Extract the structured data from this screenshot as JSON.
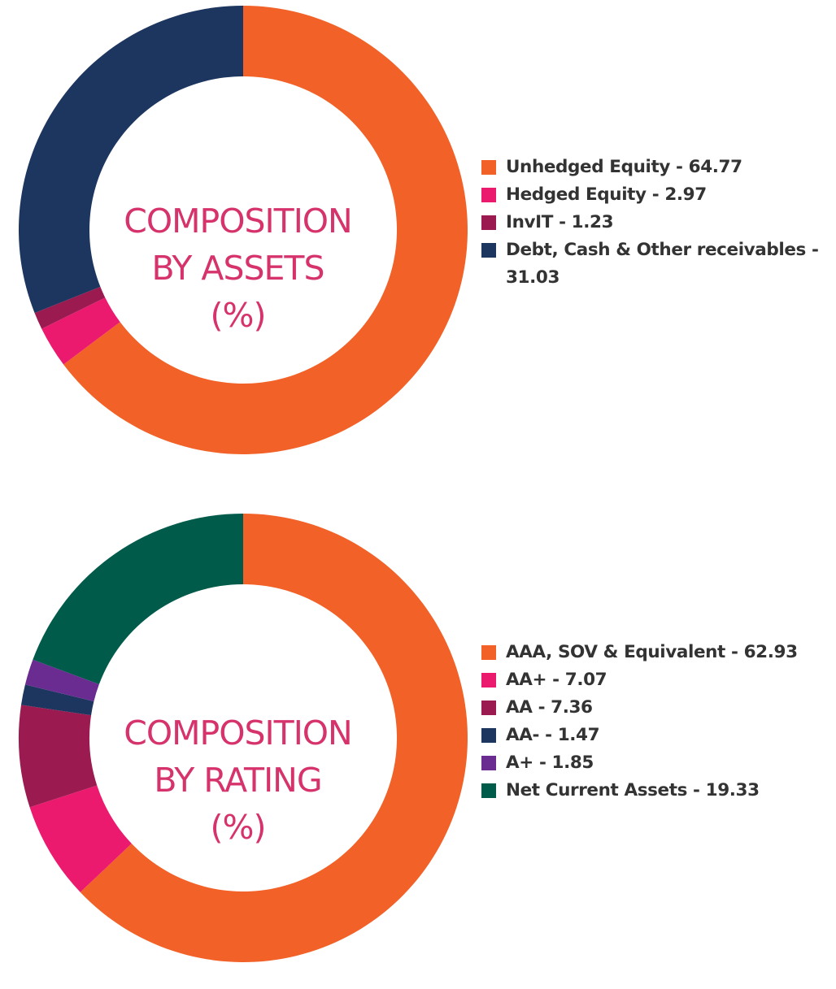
{
  "chart_data": [
    {
      "type": "pie",
      "title_lines": [
        "COMPOSITION",
        "BY ASSETS",
        "(%)"
      ],
      "categories": [
        "Unhedged Equity",
        "Hedged Equity",
        "InvIT",
        "Debt, Cash & Other receivables"
      ],
      "values": [
        64.77,
        2.97,
        1.23,
        31.03
      ],
      "colors": [
        "#f26127",
        "#ec1a6e",
        "#9b1b50",
        "#1c365f"
      ],
      "legend_labels": [
        "Unhedged Equity - 64.77",
        "Hedged Equity - 2.97",
        "InvIT - 1.23",
        "Debt, Cash & Other receivables - 31.03"
      ],
      "legend_placement": "right"
    },
    {
      "type": "pie",
      "title_lines": [
        "COMPOSITION",
        "BY RATING",
        "(%)"
      ],
      "categories": [
        "AAA, SOV & Equivalent",
        "AA+",
        "AA",
        "AA-",
        "A+",
        "Net Current Assets"
      ],
      "values": [
        62.93,
        7.07,
        7.36,
        1.47,
        1.85,
        19.33
      ],
      "colors": [
        "#f26127",
        "#ec1a6e",
        "#9b1b50",
        "#1c365f",
        "#6b2c91",
        "#005b4a"
      ],
      "legend_labels": [
        "AAA, SOV & Equivalent - 62.93",
        "AA+ - 7.07",
        "AA - 7.36",
        "AA- - 1.47",
        "A+ - 1.85",
        "Net Current Assets - 19.33"
      ],
      "legend_placement": "right"
    }
  ]
}
